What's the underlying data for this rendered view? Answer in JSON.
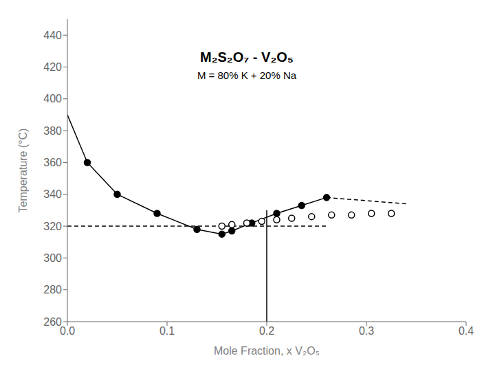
{
  "chart_data": {
    "type": "line",
    "title": "M₂S₂O₇ - V₂O₅",
    "subtitle": "M = 80% K + 20% Na",
    "xlabel": "Mole Fraction, x V₂O₅",
    "ylabel": "Temperature (°C)",
    "xlim": [
      0,
      0.4
    ],
    "ylim": [
      260,
      450
    ],
    "xticks": [
      {
        "value": 0,
        "label": "0.0"
      },
      0.1,
      0.2,
      0.3,
      0.4
    ],
    "yticks": [
      260,
      280,
      300,
      320,
      340,
      360,
      380,
      400,
      420,
      440
    ],
    "grid": false,
    "series": [
      {
        "type": "line",
        "color": "#000000",
        "line_style": "solid",
        "marker": "none",
        "x": [
          0.0,
          0.02,
          0.05,
          0.09,
          0.13,
          0.155,
          0.165,
          0.185,
          0.21,
          0.235,
          0.26
        ],
        "values": [
          390,
          360,
          340,
          328,
          318,
          315,
          317,
          322,
          328,
          333,
          338
        ]
      },
      {
        "type": "line",
        "color": "#000000",
        "line_style": "dashed",
        "marker": "none",
        "x": [
          0.26,
          0.34
        ],
        "values": [
          338,
          334
        ]
      },
      {
        "type": "line",
        "color": "#000000",
        "line_style": "dashed",
        "marker": "none",
        "x": [
          0.0,
          0.26
        ],
        "values": [
          320,
          320
        ]
      },
      {
        "type": "line",
        "color": "#000000",
        "line_style": "solid",
        "marker": "none",
        "x": [
          0.2,
          0.2
        ],
        "values": [
          260,
          330
        ]
      },
      {
        "type": "scatter",
        "color": "#000000",
        "marker": "circle",
        "x": [
          0.02,
          0.05,
          0.09,
          0.13,
          0.155,
          0.165,
          0.185,
          0.21,
          0.235,
          0.26
        ],
        "values": [
          360,
          340,
          328,
          318,
          315,
          317,
          322,
          328,
          333,
          338
        ]
      },
      {
        "type": "scatter",
        "color": "#000000",
        "marker": "open_circle",
        "x": [
          0.155,
          0.165,
          0.18,
          0.195,
          0.21,
          0.225,
          0.245,
          0.265,
          0.285,
          0.305,
          0.325
        ],
        "values": [
          320,
          321,
          322,
          323,
          324,
          325,
          326,
          327,
          327,
          328,
          328
        ]
      }
    ]
  }
}
